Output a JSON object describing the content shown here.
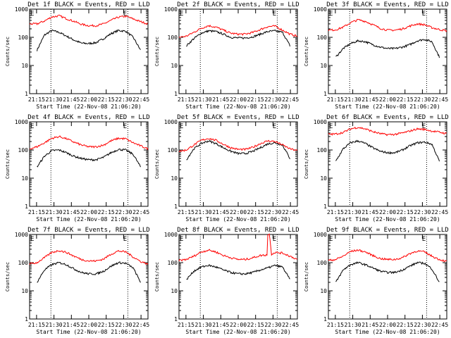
{
  "figure": {
    "ylabel": "Counts/sec",
    "xlabel": "Start Time (22-Nov-08 21:06:20)",
    "x_ticks": [
      "21:15",
      "21:30",
      "21:45",
      "22:00",
      "22:15",
      "22:30",
      "22:45"
    ],
    "y_ticks": [
      "1",
      "10",
      "100",
      "1000"
    ],
    "corner_markers": [
      "E",
      "E"
    ],
    "legend_colors": {
      "events": "#000000",
      "lld": "#ff0000"
    }
  },
  "chart_data": [
    {
      "type": "line",
      "title": "Det 1f BLACK = Events, RED = LLD",
      "xlim_minutes": [
        9,
        41
      ],
      "ylim": [
        1,
        1000
      ],
      "yscale": "log",
      "series": [
        {
          "name": "BLACK = Events",
          "color": "#000000",
          "x_minutes": [
            11,
            13,
            15,
            17,
            19,
            21,
            23,
            25,
            27,
            29,
            31,
            33,
            35,
            37,
            39
          ],
          "values": [
            35,
            120,
            175,
            150,
            110,
            80,
            62,
            60,
            65,
            90,
            135,
            175,
            165,
            100,
            35
          ]
        },
        {
          "name": "RED = LLD",
          "color": "#ff0000",
          "x_minutes": [
            9,
            11,
            13,
            15,
            17,
            19,
            21,
            23,
            25,
            27,
            29,
            31,
            33,
            35,
            37,
            39,
            41
          ],
          "values": [
            300,
            300,
            380,
            530,
            580,
            460,
            370,
            290,
            260,
            260,
            300,
            400,
            520,
            560,
            450,
            360,
            300
          ]
        }
      ]
    },
    {
      "type": "line",
      "title": "Det 2f BLACK = Events, RED = LLD",
      "xlim_minutes": [
        9,
        41
      ],
      "ylim": [
        1,
        1000
      ],
      "yscale": "log",
      "series": [
        {
          "name": "BLACK = Events",
          "color": "#000000",
          "x_minutes": [
            11,
            13,
            15,
            17,
            19,
            21,
            23,
            25,
            27,
            29,
            31,
            33,
            35,
            37,
            39
          ],
          "values": [
            50,
            90,
            140,
            170,
            160,
            130,
            100,
            95,
            95,
            105,
            130,
            160,
            170,
            150,
            50
          ]
        },
        {
          "name": "RED = LLD",
          "color": "#ff0000",
          "x_minutes": [
            9,
            11,
            13,
            15,
            17,
            19,
            21,
            23,
            25,
            27,
            29,
            31,
            33,
            35,
            37,
            39,
            41
          ],
          "values": [
            100,
            110,
            150,
            210,
            260,
            230,
            180,
            140,
            130,
            130,
            150,
            190,
            240,
            250,
            180,
            130,
            110
          ]
        }
      ]
    },
    {
      "type": "line",
      "title": "Det 3f BLACK = Events, RED = LLD",
      "xlim_minutes": [
        9,
        41
      ],
      "ylim": [
        1,
        1000
      ],
      "yscale": "log",
      "series": [
        {
          "name": "BLACK = Events",
          "color": "#000000",
          "x_minutes": [
            11,
            13,
            15,
            17,
            19,
            21,
            23,
            25,
            27,
            29,
            31,
            33,
            35,
            37,
            39
          ],
          "values": [
            20,
            40,
            60,
            75,
            70,
            55,
            45,
            40,
            40,
            45,
            55,
            75,
            85,
            70,
            20
          ]
        },
        {
          "name": "RED = LLD",
          "color": "#ff0000",
          "x_minutes": [
            9,
            11,
            13,
            15,
            17,
            19,
            21,
            23,
            25,
            27,
            29,
            31,
            33,
            35,
            37,
            39,
            41
          ],
          "values": [
            180,
            185,
            230,
            330,
            420,
            370,
            280,
            210,
            180,
            180,
            200,
            250,
            300,
            280,
            220,
            190,
            170
          ]
        }
      ]
    },
    {
      "type": "line",
      "title": "Det 4f BLACK = Events, RED = LLD",
      "xlim_minutes": [
        9,
        41
      ],
      "ylim": [
        1,
        1000
      ],
      "yscale": "log",
      "series": [
        {
          "name": "BLACK = Events",
          "color": "#000000",
          "x_minutes": [
            11,
            13,
            15,
            17,
            19,
            21,
            23,
            25,
            27,
            29,
            31,
            33,
            35,
            37,
            39
          ],
          "values": [
            25,
            60,
            95,
            100,
            80,
            60,
            50,
            45,
            45,
            55,
            80,
            105,
            100,
            70,
            25
          ]
        },
        {
          "name": "RED = LLD",
          "color": "#ff0000",
          "x_minutes": [
            9,
            11,
            13,
            15,
            17,
            19,
            21,
            23,
            25,
            27,
            29,
            31,
            33,
            35,
            37,
            39,
            41
          ],
          "values": [
            110,
            130,
            180,
            260,
            300,
            250,
            190,
            150,
            130,
            130,
            150,
            210,
            260,
            250,
            180,
            140,
            110
          ]
        }
      ]
    },
    {
      "type": "line",
      "title": "Det 5f BLACK = Events, RED = LLD",
      "xlim_minutes": [
        9,
        41
      ],
      "ylim": [
        1,
        1000
      ],
      "yscale": "log",
      "series": [
        {
          "name": "BLACK = Events",
          "color": "#000000",
          "x_minutes": [
            11,
            13,
            15,
            17,
            19,
            21,
            23,
            25,
            27,
            29,
            31,
            33,
            35,
            37,
            39
          ],
          "values": [
            45,
            110,
            170,
            210,
            170,
            120,
            90,
            75,
            75,
            90,
            120,
            165,
            180,
            150,
            50
          ]
        },
        {
          "name": "RED = LLD",
          "color": "#ff0000",
          "x_minutes": [
            9,
            11,
            13,
            15,
            17,
            19,
            21,
            23,
            25,
            27,
            29,
            31,
            33,
            35,
            37,
            39,
            41
          ],
          "values": [
            90,
            100,
            150,
            220,
            260,
            220,
            160,
            120,
            105,
            105,
            125,
            170,
            210,
            200,
            150,
            110,
            95
          ]
        }
      ]
    },
    {
      "type": "line",
      "title": "Det 6f BLACK = Events, RED = LLD",
      "xlim_minutes": [
        9,
        41
      ],
      "ylim": [
        1,
        1000
      ],
      "yscale": "log",
      "series": [
        {
          "name": "BLACK = Events",
          "color": "#000000",
          "x_minutes": [
            11,
            13,
            15,
            17,
            19,
            21,
            23,
            25,
            27,
            29,
            31,
            33,
            35,
            37,
            39
          ],
          "values": [
            40,
            110,
            180,
            210,
            170,
            120,
            90,
            80,
            80,
            100,
            140,
            180,
            190,
            160,
            40
          ]
        },
        {
          "name": "RED = LLD",
          "color": "#ff0000",
          "x_minutes": [
            9,
            11,
            13,
            15,
            17,
            19,
            21,
            23,
            25,
            27,
            29,
            31,
            33,
            35,
            37,
            39,
            41
          ],
          "values": [
            360,
            370,
            420,
            560,
            640,
            560,
            450,
            380,
            350,
            360,
            400,
            470,
            560,
            540,
            470,
            430,
            380
          ]
        }
      ]
    },
    {
      "type": "line",
      "title": "Det 7f BLACK = Events, RED = LLD",
      "xlim_minutes": [
        9,
        41
      ],
      "ylim": [
        1,
        1000
      ],
      "yscale": "log",
      "series": [
        {
          "name": "BLACK = Events",
          "color": "#000000",
          "x_minutes": [
            11,
            13,
            15,
            17,
            19,
            21,
            23,
            25,
            27,
            29,
            31,
            33,
            35,
            37,
            39
          ],
          "values": [
            20,
            55,
            85,
            100,
            85,
            60,
            45,
            40,
            40,
            50,
            75,
            100,
            95,
            65,
            20
          ]
        },
        {
          "name": "RED = LLD",
          "color": "#ff0000",
          "x_minutes": [
            9,
            11,
            13,
            15,
            17,
            19,
            21,
            23,
            25,
            27,
            29,
            31,
            33,
            35,
            37,
            39,
            41
          ],
          "values": [
            90,
            100,
            150,
            230,
            270,
            230,
            170,
            130,
            115,
            115,
            135,
            200,
            260,
            240,
            160,
            110,
            90
          ]
        }
      ]
    },
    {
      "type": "line",
      "title": "Det 8f BLACK = Events, RED = LLD",
      "xlim_minutes": [
        9,
        41
      ],
      "ylim": [
        1,
        1000
      ],
      "yscale": "log",
      "series": [
        {
          "name": "BLACK = Events",
          "color": "#000000",
          "x_minutes": [
            11,
            13,
            15,
            17,
            19,
            21,
            23,
            25,
            27,
            29,
            31,
            33,
            35,
            37,
            39
          ],
          "values": [
            25,
            50,
            70,
            80,
            70,
            55,
            45,
            40,
            40,
            45,
            55,
            65,
            80,
            70,
            25
          ]
        },
        {
          "name": "RED = LLD",
          "color": "#ff0000",
          "x_minutes": [
            9,
            11,
            13,
            15,
            17,
            19,
            21,
            23,
            25,
            27,
            29,
            31,
            32.9,
            33,
            33.5,
            34,
            35,
            37,
            39,
            41
          ],
          "values": [
            120,
            130,
            170,
            240,
            280,
            240,
            180,
            150,
            130,
            130,
            150,
            180,
            190,
            1000,
            1000,
            200,
            230,
            220,
            170,
            130
          ]
        }
      ]
    },
    {
      "type": "line",
      "title": "Det 9f BLACK = Events, RED = LLD",
      "xlim_minutes": [
        9,
        41
      ],
      "ylim": [
        1,
        1000
      ],
      "yscale": "log",
      "series": [
        {
          "name": "BLACK = Events",
          "color": "#000000",
          "x_minutes": [
            11,
            13,
            15,
            17,
            19,
            21,
            23,
            25,
            27,
            29,
            31,
            33,
            35,
            37,
            39
          ],
          "values": [
            20,
            55,
            85,
            100,
            85,
            65,
            50,
            45,
            45,
            55,
            75,
            100,
            95,
            60,
            20
          ]
        },
        {
          "name": "RED = LLD",
          "color": "#ff0000",
          "x_minutes": [
            9,
            11,
            13,
            15,
            17,
            19,
            21,
            23,
            25,
            27,
            29,
            31,
            33,
            35,
            37,
            39,
            41
          ],
          "values": [
            120,
            130,
            170,
            250,
            280,
            240,
            180,
            140,
            130,
            130,
            150,
            210,
            260,
            240,
            170,
            130,
            110
          ]
        }
      ]
    }
  ]
}
